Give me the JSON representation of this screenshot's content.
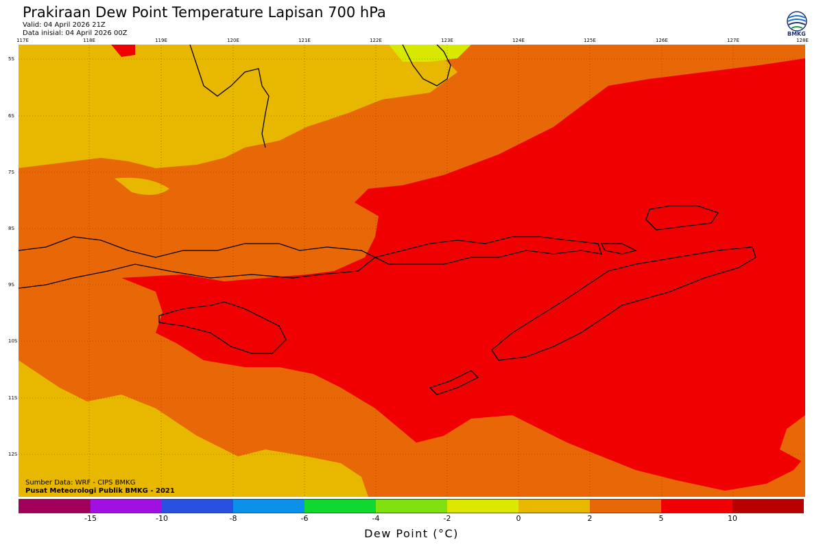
{
  "header": {
    "title": "Prakiraan Dew Point Temperature Lapisan 700 hPa",
    "valid": "Valid: 04 April 2026 21Z",
    "init": "Data inisial: 04 April 2026 00Z"
  },
  "logo": {
    "text": "BMKG",
    "icon": "bmkg-logo-icon",
    "color": "#1a2f6b"
  },
  "axes": {
    "lon_labels": [
      "117E",
      "118E",
      "119E",
      "120E",
      "121E",
      "122E",
      "123E",
      "124E",
      "125E",
      "126E",
      "127E",
      "128E"
    ],
    "lat_labels": [
      "5S",
      "6S",
      "7S",
      "8S",
      "9S",
      "10S",
      "11S",
      "12S"
    ]
  },
  "credits": {
    "source": "Sumber Data: WRF - CIPS BMKG",
    "org": "Pusat Meteorologi Publik BMKG - 2021"
  },
  "colorbar": {
    "colors": [
      "#a0005a",
      "#a010e0",
      "#2a50e0",
      "#0a90e8",
      "#10d830",
      "#80e010",
      "#dce800",
      "#e8b800",
      "#e86808",
      "#f00000",
      "#b80000"
    ],
    "ticks": [
      "-15",
      "-10",
      "-8",
      "-6",
      "-4",
      "-2",
      "0",
      "2",
      "5",
      "10"
    ],
    "unit": "Dew Point (°C)"
  },
  "map_colors": {
    "light_yellow": "#d8e800",
    "yellow": "#e8b800",
    "orange": "#e86808",
    "red": "#f00000",
    "coast": "#000000"
  }
}
